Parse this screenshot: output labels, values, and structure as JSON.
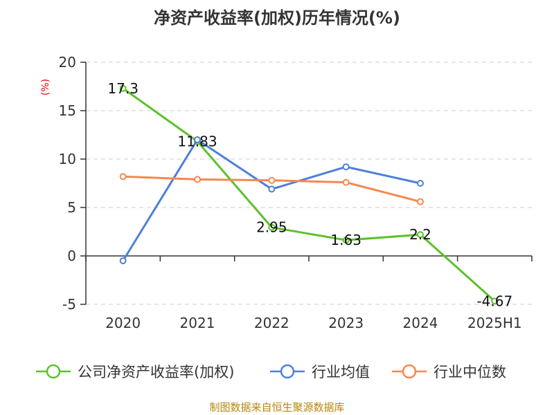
{
  "chart_data": {
    "type": "line",
    "title": "净资产收益率(加权)历年情况(%)",
    "ylabel": "(%)",
    "categories": [
      "2020",
      "2021",
      "2022",
      "2023",
      "2024",
      "2025H1"
    ],
    "ylim": [
      -5,
      20
    ],
    "yticks": [
      20,
      15,
      10,
      5,
      0,
      -5
    ],
    "grid": true,
    "legend_position": "bottom",
    "series": [
      {
        "name": "公司净资产收益率(加权)",
        "color": "#5cc12a",
        "values": [
          17.3,
          11.83,
          2.95,
          1.63,
          2.2,
          -4.67
        ],
        "labels": [
          "17.3",
          "11.83",
          "2.95",
          "1.63",
          "2.2",
          "-4.67"
        ]
      },
      {
        "name": "行业均值",
        "color": "#4d7fd9",
        "values": [
          -0.5,
          12.0,
          6.9,
          9.2,
          7.5,
          null
        ]
      },
      {
        "name": "行业中位数",
        "color": "#f5884f",
        "values": [
          8.2,
          7.9,
          7.8,
          7.6,
          5.6,
          null
        ]
      }
    ]
  },
  "source": "制图数据来自恒生聚源数据库"
}
